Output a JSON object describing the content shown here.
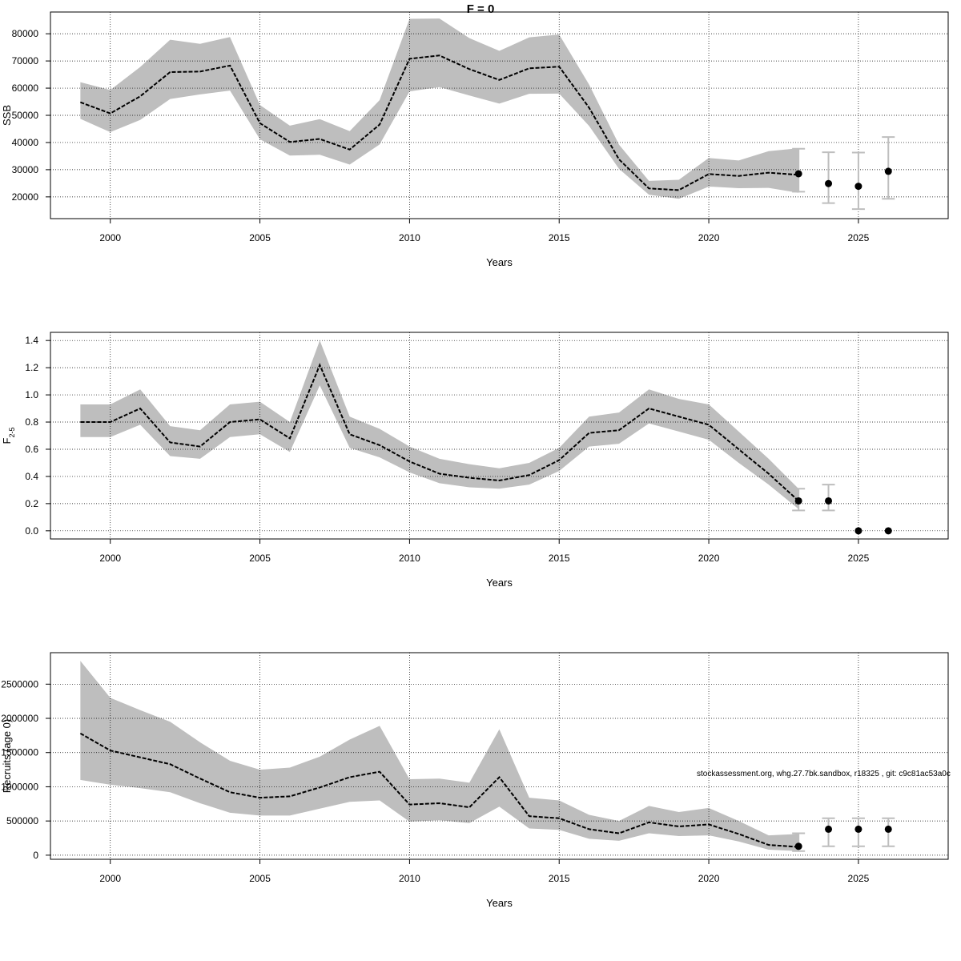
{
  "title": "F = 0",
  "footer": "stockassessment.org, whg.27.7bk.sandbox, r18325 , git: c9c81ac53a0c",
  "colors": {
    "band": "#bebebe",
    "line": "#000000",
    "grid": "#000000",
    "errorbar": "#bebebe"
  },
  "chart_data": [
    {
      "type": "line",
      "ylabel": "SSB",
      "xlabel": "Years",
      "xlim": [
        1998,
        2028
      ],
      "ylim": [
        12000,
        88000
      ],
      "x_ticks": [
        2000,
        2005,
        2010,
        2015,
        2020,
        2025
      ],
      "y_ticks": [
        20000,
        30000,
        40000,
        50000,
        60000,
        70000,
        80000
      ],
      "grid": true,
      "x": [
        1999,
        2000,
        2001,
        2002,
        2003,
        2004,
        2005,
        2006,
        2007,
        2008,
        2009,
        2010,
        2011,
        2012,
        2013,
        2014,
        2015,
        2016,
        2017,
        2018,
        2019,
        2020,
        2021,
        2022,
        2023
      ],
      "estimate": [
        54800,
        50700,
        57000,
        65900,
        66100,
        68300,
        47100,
        40200,
        41300,
        37400,
        46600,
        70800,
        72000,
        67000,
        63000,
        67300,
        67900,
        52800,
        33800,
        23100,
        22500,
        28400,
        27700,
        28900,
        28100
      ],
      "lower": [
        48700,
        43800,
        48300,
        56000,
        57700,
        59100,
        41200,
        35200,
        35500,
        31900,
        39300,
        58800,
        60400,
        57300,
        54300,
        57900,
        58000,
        46100,
        30300,
        20800,
        19300,
        23800,
        23200,
        23300,
        21500
      ],
      "upper": [
        62200,
        59300,
        67800,
        77800,
        76300,
        78800,
        53800,
        46200,
        48600,
        44200,
        55600,
        85500,
        85600,
        78400,
        73700,
        78700,
        79700,
        61300,
        39200,
        25900,
        26300,
        34300,
        33400,
        36800,
        37900
      ],
      "forecast": {
        "x": [
          2023,
          2024,
          2025,
          2026
        ],
        "estimate": [
          28500,
          24900,
          23900,
          29400
        ],
        "lower": [
          21900,
          17700,
          15500,
          19300
        ],
        "upper": [
          37700,
          36400,
          36300,
          42000
        ]
      }
    },
    {
      "type": "line",
      "ylabel": "F",
      "ylabel_sub": "2-5",
      "xlabel": "Years",
      "xlim": [
        1998,
        2028
      ],
      "ylim": [
        -0.06,
        1.46
      ],
      "x_ticks": [
        2000,
        2005,
        2010,
        2015,
        2020,
        2025
      ],
      "y_ticks": [
        0.0,
        0.2,
        0.4,
        0.6,
        0.8,
        1.0,
        1.2,
        1.4
      ],
      "y_tick_labels": [
        "0.0",
        "0.2",
        "0.4",
        "0.6",
        "0.8",
        "1.0",
        "1.2",
        "1.4"
      ],
      "grid": true,
      "x": [
        1999,
        2000,
        2001,
        2002,
        2003,
        2004,
        2005,
        2006,
        2007,
        2008,
        2009,
        2010,
        2011,
        2012,
        2013,
        2014,
        2015,
        2016,
        2017,
        2018,
        2019,
        2020,
        2021,
        2022,
        2023
      ],
      "estimate": [
        0.8,
        0.8,
        0.9,
        0.65,
        0.62,
        0.8,
        0.82,
        0.68,
        1.22,
        0.71,
        0.63,
        0.51,
        0.42,
        0.39,
        0.37,
        0.41,
        0.52,
        0.72,
        0.74,
        0.9,
        0.84,
        0.78,
        0.6,
        0.42,
        0.22
      ],
      "lower": [
        0.69,
        0.69,
        0.78,
        0.55,
        0.53,
        0.69,
        0.71,
        0.58,
        1.07,
        0.61,
        0.54,
        0.43,
        0.35,
        0.32,
        0.31,
        0.34,
        0.44,
        0.62,
        0.64,
        0.79,
        0.73,
        0.67,
        0.5,
        0.34,
        0.16
      ],
      "upper": [
        0.93,
        0.93,
        1.04,
        0.77,
        0.74,
        0.93,
        0.95,
        0.8,
        1.4,
        0.84,
        0.75,
        0.62,
        0.53,
        0.49,
        0.46,
        0.5,
        0.61,
        0.84,
        0.87,
        1.04,
        0.97,
        0.93,
        0.73,
        0.53,
        0.31
      ],
      "forecast": {
        "x": [
          2023,
          2024,
          2025,
          2026
        ],
        "estimate": [
          0.22,
          0.22,
          0.0,
          0.0
        ],
        "lower": [
          0.15,
          0.15,
          null,
          null
        ],
        "upper": [
          0.31,
          0.34,
          null,
          null
        ]
      }
    },
    {
      "type": "line",
      "ylabel": "Recruits (age 0)",
      "xlabel": "Years",
      "xlim": [
        1998,
        2028
      ],
      "ylim": [
        -60000,
        2960000
      ],
      "x_ticks": [
        2000,
        2005,
        2010,
        2015,
        2020,
        2025
      ],
      "y_ticks": [
        0,
        500000,
        1000000,
        1500000,
        2000000,
        2500000
      ],
      "grid": true,
      "x": [
        1999,
        2000,
        2001,
        2002,
        2003,
        2004,
        2005,
        2006,
        2007,
        2008,
        2009,
        2010,
        2011,
        2012,
        2013,
        2014,
        2015,
        2016,
        2017,
        2018,
        2019,
        2020,
        2021,
        2022,
        2023
      ],
      "estimate": [
        1780000,
        1530000,
        1430000,
        1330000,
        1120000,
        920000,
        840000,
        860000,
        990000,
        1140000,
        1220000,
        740000,
        760000,
        700000,
        1140000,
        570000,
        540000,
        380000,
        320000,
        480000,
        420000,
        450000,
        310000,
        150000,
        120000
      ],
      "lower": [
        1100000,
        1030000,
        980000,
        920000,
        760000,
        620000,
        580000,
        580000,
        680000,
        780000,
        800000,
        490000,
        510000,
        470000,
        710000,
        390000,
        370000,
        240000,
        210000,
        320000,
        280000,
        290000,
        200000,
        80000,
        60000
      ],
      "upper": [
        2840000,
        2300000,
        2120000,
        1950000,
        1650000,
        1380000,
        1250000,
        1280000,
        1440000,
        1690000,
        1890000,
        1110000,
        1120000,
        1060000,
        1840000,
        840000,
        800000,
        590000,
        500000,
        720000,
        630000,
        690000,
        500000,
        290000,
        310000
      ],
      "forecast": {
        "x": [
          2023,
          2024,
          2025,
          2026
        ],
        "estimate": [
          130000,
          380000,
          380000,
          380000
        ],
        "lower": [
          60000,
          130000,
          130000,
          130000
        ],
        "upper": [
          320000,
          540000,
          540000,
          540000
        ]
      }
    }
  ]
}
